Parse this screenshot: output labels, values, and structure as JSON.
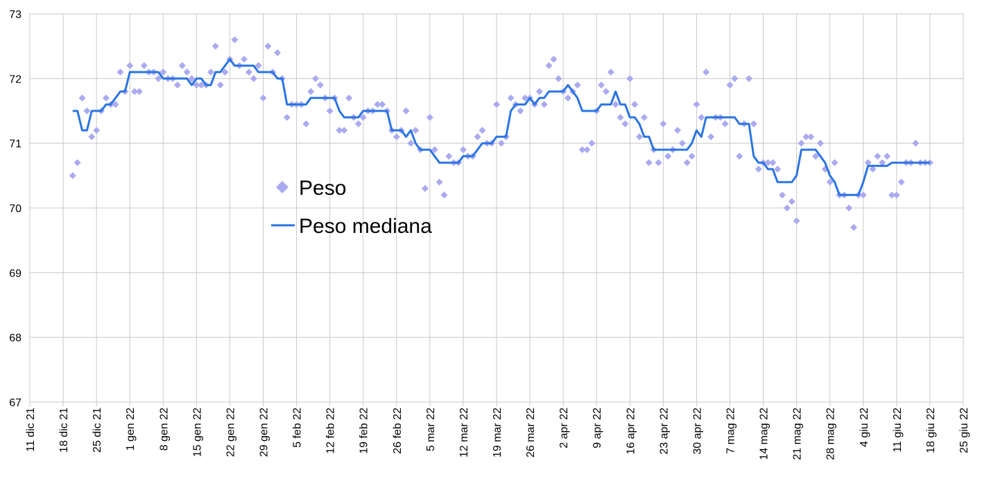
{
  "chart_data": {
    "type": "line",
    "x": [
      "2021-12-20",
      "2021-12-21",
      "2021-12-22",
      "2021-12-23",
      "2021-12-24",
      "2021-12-25",
      "2021-12-26",
      "2021-12-27",
      "2021-12-28",
      "2021-12-29",
      "2021-12-30",
      "2021-12-31",
      "2022-01-01",
      "2022-01-02",
      "2022-01-03",
      "2022-01-04",
      "2022-01-05",
      "2022-01-06",
      "2022-01-07",
      "2022-01-08",
      "2022-01-09",
      "2022-01-10",
      "2022-01-11",
      "2022-01-12",
      "2022-01-13",
      "2022-01-14",
      "2022-01-15",
      "2022-01-16",
      "2022-01-17",
      "2022-01-18",
      "2022-01-19",
      "2022-01-20",
      "2022-01-21",
      "2022-01-22",
      "2022-01-23",
      "2022-01-24",
      "2022-01-25",
      "2022-01-26",
      "2022-01-27",
      "2022-01-28",
      "2022-01-29",
      "2022-01-30",
      "2022-01-31",
      "2022-02-01",
      "2022-02-02",
      "2022-02-03",
      "2022-02-04",
      "2022-02-05",
      "2022-02-06",
      "2022-02-07",
      "2022-02-08",
      "2022-02-09",
      "2022-02-10",
      "2022-02-11",
      "2022-02-12",
      "2022-02-13",
      "2022-02-14",
      "2022-02-15",
      "2022-02-16",
      "2022-02-17",
      "2022-02-18",
      "2022-02-19",
      "2022-02-20",
      "2022-02-21",
      "2022-02-22",
      "2022-02-23",
      "2022-02-24",
      "2022-02-25",
      "2022-02-26",
      "2022-02-27",
      "2022-02-28",
      "2022-03-01",
      "2022-03-02",
      "2022-03-03",
      "2022-03-04",
      "2022-03-05",
      "2022-03-06",
      "2022-03-07",
      "2022-03-08",
      "2022-03-09",
      "2022-03-10",
      "2022-03-11",
      "2022-03-12",
      "2022-03-13",
      "2022-03-14",
      "2022-03-15",
      "2022-03-16",
      "2022-03-17",
      "2022-03-18",
      "2022-03-19",
      "2022-03-20",
      "2022-03-21",
      "2022-03-22",
      "2022-03-23",
      "2022-03-24",
      "2022-03-25",
      "2022-03-26",
      "2022-03-27",
      "2022-03-28",
      "2022-03-29",
      "2022-03-30",
      "2022-03-31",
      "2022-04-01",
      "2022-04-02",
      "2022-04-03",
      "2022-04-04",
      "2022-04-05",
      "2022-04-06",
      "2022-04-07",
      "2022-04-08",
      "2022-04-09",
      "2022-04-10",
      "2022-04-11",
      "2022-04-12",
      "2022-04-13",
      "2022-04-14",
      "2022-04-15",
      "2022-04-16",
      "2022-04-17",
      "2022-04-18",
      "2022-04-19",
      "2022-04-20",
      "2022-04-21",
      "2022-04-22",
      "2022-04-23",
      "2022-04-24",
      "2022-04-25",
      "2022-04-26",
      "2022-04-27",
      "2022-04-28",
      "2022-04-29",
      "2022-04-30",
      "2022-05-01",
      "2022-05-02",
      "2022-05-03",
      "2022-05-04",
      "2022-05-05",
      "2022-05-06",
      "2022-05-07",
      "2022-05-08",
      "2022-05-09",
      "2022-05-10",
      "2022-05-11",
      "2022-05-12",
      "2022-05-13",
      "2022-05-14",
      "2022-05-15",
      "2022-05-16",
      "2022-05-17",
      "2022-05-18",
      "2022-05-19",
      "2022-05-20",
      "2022-05-21",
      "2022-05-22",
      "2022-05-23",
      "2022-05-24",
      "2022-05-25",
      "2022-05-26",
      "2022-05-27",
      "2022-05-28",
      "2022-05-29",
      "2022-05-30",
      "2022-05-31",
      "2022-06-01",
      "2022-06-02",
      "2022-06-03",
      "2022-06-04",
      "2022-06-05",
      "2022-06-06",
      "2022-06-07",
      "2022-06-08",
      "2022-06-09",
      "2022-06-10",
      "2022-06-11",
      "2022-06-12",
      "2022-06-13",
      "2022-06-14",
      "2022-06-15",
      "2022-06-16",
      "2022-06-17",
      "2022-06-18"
    ],
    "series": [
      {
        "name": "Peso",
        "type": "scatter",
        "color": "#aaaaf0",
        "values": [
          70.5,
          70.7,
          71.7,
          71.5,
          71.1,
          71.2,
          71.5,
          71.7,
          71.6,
          71.6,
          72.1,
          71.8,
          72.2,
          71.8,
          71.8,
          72.2,
          72.1,
          72.1,
          72.0,
          72.1,
          72.0,
          72.0,
          71.9,
          72.2,
          72.1,
          72.0,
          71.9,
          71.9,
          71.9,
          72.1,
          72.5,
          71.9,
          72.1,
          72.3,
          72.6,
          72.2,
          72.3,
          72.1,
          72.0,
          72.2,
          71.7,
          72.5,
          72.1,
          72.4,
          72.0,
          71.4,
          71.6,
          71.6,
          71.6,
          71.3,
          71.8,
          72.0,
          71.9,
          71.7,
          71.5,
          71.7,
          71.2,
          71.2,
          71.7,
          71.4,
          71.3,
          71.4,
          71.5,
          71.5,
          71.6,
          71.6,
          71.5,
          71.2,
          71.1,
          71.2,
          71.5,
          71.0,
          71.2,
          70.9,
          70.3,
          71.4,
          70.9,
          70.4,
          70.2,
          70.8,
          70.7,
          70.7,
          70.9,
          70.8,
          70.8,
          71.1,
          71.2,
          71.0,
          71.0,
          71.6,
          71.0,
          71.1,
          71.7,
          71.6,
          71.5,
          71.7,
          71.7,
          71.6,
          71.8,
          71.6,
          72.2,
          72.3,
          72.0,
          71.8,
          71.7,
          71.8,
          71.9,
          70.9,
          70.9,
          71.0,
          71.5,
          71.9,
          71.8,
          72.1,
          71.6,
          71.4,
          71.3,
          72.0,
          71.6,
          71.1,
          71.4,
          70.7,
          70.9,
          70.7,
          71.3,
          70.8,
          70.9,
          71.2,
          71.0,
          70.7,
          70.8,
          71.6,
          71.4,
          72.1,
          71.1,
          71.4,
          71.4,
          71.3,
          71.9,
          72.0,
          70.8,
          71.3,
          72.0,
          71.3,
          70.6,
          70.7,
          70.7,
          70.7,
          70.6,
          70.2,
          70.0,
          70.1,
          69.8,
          71.0,
          71.1,
          71.1,
          70.8,
          71.0,
          70.6,
          70.4,
          70.7,
          70.2,
          70.2,
          70.0,
          69.7,
          70.2,
          70.2,
          70.7,
          70.6,
          70.8,
          70.7,
          70.8,
          70.2,
          70.2,
          70.4,
          70.7,
          70.7,
          71.0,
          70.7,
          70.7,
          70.7
        ]
      },
      {
        "name": "Peso mediana",
        "type": "line",
        "color": "#2a74e4",
        "values": [
          71.5,
          71.5,
          71.2,
          71.2,
          71.5,
          71.5,
          71.5,
          71.6,
          71.6,
          71.7,
          71.8,
          71.8,
          72.1,
          72.1,
          72.1,
          72.1,
          72.1,
          72.1,
          72.1,
          72.0,
          72.0,
          72.0,
          72.0,
          72.0,
          72.0,
          71.9,
          72.0,
          72.0,
          71.9,
          71.9,
          72.1,
          72.1,
          72.2,
          72.3,
          72.2,
          72.2,
          72.2,
          72.2,
          72.2,
          72.1,
          72.1,
          72.1,
          72.1,
          72.0,
          72.0,
          71.6,
          71.6,
          71.6,
          71.6,
          71.6,
          71.7,
          71.7,
          71.7,
          71.7,
          71.7,
          71.7,
          71.5,
          71.4,
          71.4,
          71.4,
          71.4,
          71.5,
          71.5,
          71.5,
          71.5,
          71.5,
          71.5,
          71.2,
          71.2,
          71.2,
          71.1,
          71.2,
          71.0,
          70.9,
          70.9,
          70.9,
          70.8,
          70.7,
          70.7,
          70.7,
          70.7,
          70.7,
          70.8,
          70.8,
          70.8,
          70.9,
          71.0,
          71.0,
          71.0,
          71.1,
          71.1,
          71.1,
          71.5,
          71.6,
          71.6,
          71.6,
          71.7,
          71.6,
          71.7,
          71.7,
          71.8,
          71.8,
          71.8,
          71.8,
          71.9,
          71.8,
          71.7,
          71.5,
          71.5,
          71.5,
          71.5,
          71.6,
          71.6,
          71.6,
          71.8,
          71.6,
          71.6,
          71.4,
          71.4,
          71.3,
          71.1,
          71.1,
          70.9,
          70.9,
          70.9,
          70.9,
          70.9,
          70.9,
          70.9,
          70.9,
          71.0,
          71.2,
          71.1,
          71.4,
          71.4,
          71.4,
          71.4,
          71.4,
          71.4,
          71.4,
          71.3,
          71.3,
          71.3,
          70.8,
          70.7,
          70.7,
          70.6,
          70.6,
          70.4,
          70.4,
          70.4,
          70.4,
          70.5,
          70.9,
          70.9,
          70.9,
          70.9,
          70.8,
          70.7,
          70.5,
          70.4,
          70.2,
          70.2,
          70.2,
          70.2,
          70.2,
          70.4,
          70.65,
          70.65,
          70.65,
          70.65,
          70.65,
          70.7,
          70.7,
          70.7,
          70.7,
          70.7,
          70.7,
          70.7,
          70.7,
          70.7
        ]
      }
    ],
    "xlim": [
      "2021-12-11",
      "2022-06-25"
    ],
    "xticks": [
      {
        "value": "2021-12-11",
        "label": "11 dic 21"
      },
      {
        "value": "2021-12-18",
        "label": "18 dic 21"
      },
      {
        "value": "2021-12-25",
        "label": "25 dic 21"
      },
      {
        "value": "2022-01-01",
        "label": "1 gen 22"
      },
      {
        "value": "2022-01-08",
        "label": "8 gen 22"
      },
      {
        "value": "2022-01-15",
        "label": "15 gen 22"
      },
      {
        "value": "2022-01-22",
        "label": "22 gen 22"
      },
      {
        "value": "2022-01-29",
        "label": "29 gen 22"
      },
      {
        "value": "2022-02-05",
        "label": "5 feb 22"
      },
      {
        "value": "2022-02-12",
        "label": "12 feb 22"
      },
      {
        "value": "2022-02-19",
        "label": "19 feb 22"
      },
      {
        "value": "2022-02-26",
        "label": "26 feb 22"
      },
      {
        "value": "2022-03-05",
        "label": "5 mar 22"
      },
      {
        "value": "2022-03-12",
        "label": "12 mar 22"
      },
      {
        "value": "2022-03-19",
        "label": "19 mar 22"
      },
      {
        "value": "2022-03-26",
        "label": "26 mar 22"
      },
      {
        "value": "2022-04-02",
        "label": "2 apr 22"
      },
      {
        "value": "2022-04-09",
        "label": "9 apr 22"
      },
      {
        "value": "2022-04-16",
        "label": "16 apr 22"
      },
      {
        "value": "2022-04-23",
        "label": "23 apr 22"
      },
      {
        "value": "2022-04-30",
        "label": "30 apr 22"
      },
      {
        "value": "2022-05-07",
        "label": "7 mag 22"
      },
      {
        "value": "2022-05-14",
        "label": "14 mag 22"
      },
      {
        "value": "2022-05-21",
        "label": "21 mag 22"
      },
      {
        "value": "2022-05-28",
        "label": "28 mag 22"
      },
      {
        "value": "2022-06-04",
        "label": "4 giu 22"
      },
      {
        "value": "2022-06-11",
        "label": "11 giu 22"
      },
      {
        "value": "2022-06-18",
        "label": "18 giu 22"
      },
      {
        "value": "2022-06-25",
        "label": "25 giu 22"
      }
    ],
    "ylim": [
      67,
      73
    ],
    "yticks": [
      67,
      68,
      69,
      70,
      71,
      72,
      73
    ],
    "grid": true,
    "legend": "center-left"
  }
}
